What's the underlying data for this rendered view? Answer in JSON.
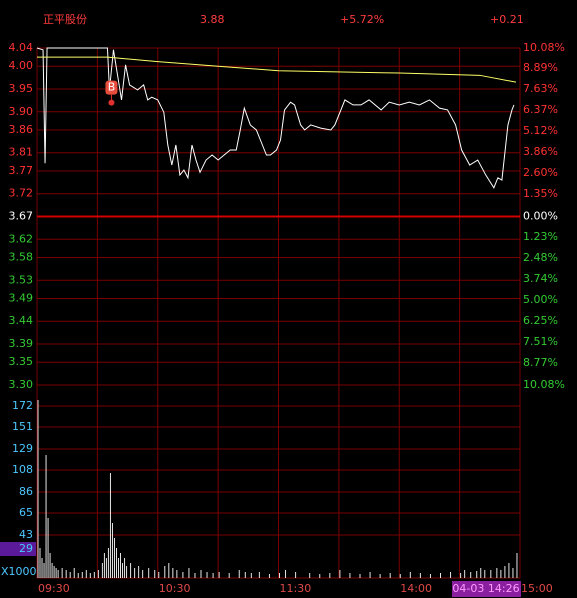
{
  "header": {
    "name": "正平股份",
    "price": "3.88",
    "change_pct": "+5.72%",
    "change": "+0.21"
  },
  "chart_data": [
    {
      "type": "line",
      "xlim": [
        0,
        240
      ],
      "ylim": [
        3.3,
        4.04
      ],
      "yticks": [
        4.04,
        {
          "value": 4.0,
          "label": "4.00"
        },
        3.95,
        {
          "value": 3.9,
          "label": "3.90"
        },
        3.86,
        3.81,
        3.77,
        3.72,
        3.67,
        3.62,
        3.58,
        3.53,
        3.49,
        3.44,
        3.39,
        3.35,
        {
          "value": 3.3,
          "label": "3.30"
        }
      ],
      "y2lim": [
        -10.08,
        10.08
      ],
      "y2ticks": [
        {
          "value": 10.08,
          "label": "10.08%"
        },
        {
          "value": 8.89,
          "label": "8.89%"
        },
        {
          "value": 7.63,
          "label": "7.63%"
        },
        {
          "value": 6.37,
          "label": "6.37%"
        },
        {
          "value": 5.12,
          "label": "5.12%"
        },
        {
          "value": 3.86,
          "label": "3.86%"
        },
        {
          "value": 2.6,
          "label": "2.60%"
        },
        {
          "value": 1.35,
          "label": "1.35%"
        },
        {
          "value": 0,
          "label": "0.00%"
        },
        {
          "value": -1.23,
          "label": "1.23%"
        },
        {
          "value": -2.48,
          "label": "2.48%"
        },
        {
          "value": -3.74,
          "label": "3.74%"
        },
        {
          "value": -5.0,
          "label": "5.00%"
        },
        {
          "value": -6.25,
          "label": "6.25%"
        },
        {
          "value": -7.51,
          "label": "7.51%"
        },
        {
          "value": -8.77,
          "label": "8.77%"
        },
        {
          "value": -10.08,
          "label": "10.08%"
        }
      ],
      "grid": true,
      "series": [
        {
          "color": "#ffffff",
          "x": [
            0,
            3,
            4,
            5,
            35,
            36,
            38,
            40,
            42,
            44,
            46,
            50,
            53,
            55,
            57,
            60,
            63,
            65,
            67,
            69,
            71,
            73,
            75,
            77,
            79,
            81,
            84,
            87,
            90,
            93,
            96,
            99,
            101,
            103,
            106,
            109,
            112,
            114,
            116,
            119,
            121,
            123,
            126,
            128,
            131,
            133,
            136,
            141,
            146,
            148,
            151,
            153,
            157,
            161,
            165,
            171,
            175,
            180,
            185,
            190,
            195,
            200,
            204,
            208,
            211,
            215,
            219,
            223,
            227,
            229,
            231,
            234,
            236,
            237
          ],
          "values": [
            4.04,
            4.036,
            3.787,
            4.04,
            4.04,
            3.948,
            4.036,
            3.981,
            3.926,
            4.003,
            3.959,
            3.948,
            3.959,
            3.926,
            3.932,
            3.926,
            3.899,
            3.827,
            3.783,
            3.827,
            3.761,
            3.772,
            3.755,
            3.827,
            3.794,
            3.767,
            3.794,
            3.805,
            3.794,
            3.805,
            3.816,
            3.816,
            3.86,
            3.908,
            3.871,
            3.86,
            3.827,
            3.805,
            3.805,
            3.816,
            3.838,
            3.904,
            3.921,
            3.915,
            3.871,
            3.86,
            3.871,
            3.864,
            3.86,
            3.871,
            3.904,
            3.926,
            3.915,
            3.915,
            3.926,
            3.904,
            3.921,
            3.915,
            3.921,
            3.915,
            3.926,
            3.908,
            3.904,
            3.871,
            3.816,
            3.783,
            3.794,
            3.761,
            3.733,
            3.755,
            3.75,
            3.871,
            3.904,
            3.915
          ]
        },
        {
          "color": "#ffff66",
          "x": [
            0,
            35,
            60,
            90,
            120,
            180,
            220,
            238
          ],
          "values": [
            4.02,
            4.02,
            4.01,
            4.0,
            3.99,
            3.985,
            3.98,
            3.965
          ]
        }
      ],
      "marker": {
        "label": "B",
        "x": 37,
        "y": 3.92
      }
    },
    {
      "type": "bar",
      "color": "#e6e6e6",
      "xlim": [
        0,
        240
      ],
      "xticks": [
        {
          "value": 0,
          "label": "09:30"
        },
        {
          "value": 60,
          "label": "10:30"
        },
        {
          "value": 120,
          "label": "11:30"
        },
        {
          "value": 180,
          "label": "14:00"
        },
        {
          "value": 240,
          "label": "15:00"
        }
      ],
      "minor_xticks": [
        30,
        90,
        150,
        210
      ],
      "ylim": [
        0,
        193
      ],
      "yticks": [
        172,
        151,
        129,
        108,
        86,
        65,
        43
      ],
      "grid": true,
      "unit_label": "X1000",
      "cursor_value": 29,
      "cursor_label": "04-03 14:26",
      "x": [
        0,
        1,
        2,
        3,
        4,
        5,
        6,
        7,
        8,
        9,
        10,
        12,
        14,
        16,
        18,
        20,
        22,
        24,
        26,
        28,
        30,
        32,
        33,
        34,
        35,
        36,
        37,
        38,
        39,
        40,
        41,
        42,
        43,
        44,
        46,
        48,
        50,
        52,
        55,
        58,
        60,
        63,
        65,
        67,
        69,
        72,
        75,
        78,
        81,
        84,
        87,
        90,
        95,
        100,
        103,
        106,
        110,
        115,
        120,
        123,
        128,
        135,
        140,
        145,
        150,
        155,
        160,
        165,
        170,
        175,
        180,
        185,
        190,
        195,
        200,
        205,
        210,
        212,
        215,
        218,
        220,
        222,
        225,
        228,
        230,
        232,
        234,
        236,
        238
      ],
      "values": [
        178,
        30,
        20,
        15,
        123,
        60,
        25,
        15,
        12,
        10,
        8,
        10,
        8,
        6,
        10,
        5,
        6,
        8,
        5,
        6,
        8,
        15,
        25,
        20,
        30,
        105,
        55,
        40,
        30,
        20,
        25,
        15,
        20,
        12,
        15,
        10,
        12,
        8,
        10,
        8,
        6,
        12,
        15,
        10,
        8,
        6,
        10,
        5,
        8,
        6,
        5,
        6,
        5,
        8,
        6,
        5,
        6,
        4,
        5,
        8,
        6,
        5,
        4,
        5,
        8,
        5,
        4,
        6,
        4,
        5,
        4,
        6,
        5,
        4,
        5,
        6,
        5,
        8,
        6,
        7,
        10,
        8,
        8,
        10,
        8,
        12,
        15,
        10,
        25
      ]
    }
  ]
}
